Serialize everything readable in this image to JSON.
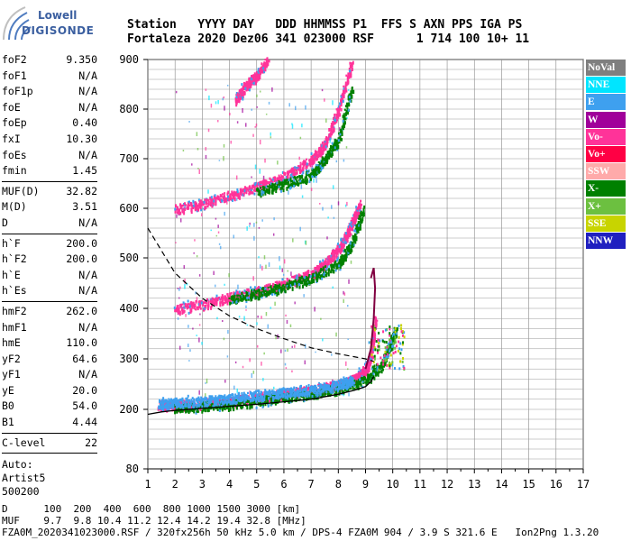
{
  "logo": {
    "line1": "Lowell",
    "line2": "DIGISONDE"
  },
  "header": {
    "line1": "Station   YYYY DAY   DDD HHMMSS P1  FFS S AXN PPS IGA PS",
    "line2": "Fortaleza 2020 Dez06 341 023000 RSF      1 714 100 10+ 11"
  },
  "params": {
    "group1": [
      {
        "k": "foF2",
        "v": "9.350"
      },
      {
        "k": "foF1",
        "v": "N/A"
      },
      {
        "k": "foF1p",
        "v": "N/A"
      },
      {
        "k": "foE",
        "v": "N/A"
      },
      {
        "k": "foEp",
        "v": "0.40"
      },
      {
        "k": "fxI",
        "v": "10.30"
      },
      {
        "k": "foEs",
        "v": "N/A"
      },
      {
        "k": "fmin",
        "v": "1.45"
      }
    ],
    "group2": [
      {
        "k": "MUF(D)",
        "v": "32.82"
      },
      {
        "k": "M(D)",
        "v": "3.51"
      },
      {
        "k": "D",
        "v": "N/A"
      }
    ],
    "group3": [
      {
        "k": "h`F",
        "v": "200.0"
      },
      {
        "k": "h`F2",
        "v": "200.0"
      },
      {
        "k": "h`E",
        "v": "N/A"
      },
      {
        "k": "h`Es",
        "v": "N/A"
      }
    ],
    "group4": [
      {
        "k": "hmF2",
        "v": "262.0"
      },
      {
        "k": "hmF1",
        "v": "N/A"
      },
      {
        "k": "hmE",
        "v": "110.0"
      },
      {
        "k": "yF2",
        "v": "64.6"
      },
      {
        "k": "yF1",
        "v": "N/A"
      },
      {
        "k": "yE",
        "v": "20.0"
      },
      {
        "k": "B0",
        "v": "54.0"
      },
      {
        "k": "B1",
        "v": "4.44"
      }
    ],
    "group5": [
      {
        "k": "C-level",
        "v": "22"
      }
    ],
    "auto": [
      "Auto:",
      "Artist5",
      "500200"
    ]
  },
  "legend": [
    {
      "label": "NoVal",
      "color": "#7f7f7f"
    },
    {
      "label": "NNE",
      "color": "#00e5ff"
    },
    {
      "label": "E",
      "color": "#3ea0ef"
    },
    {
      "label": "W",
      "color": "#a0009a"
    },
    {
      "label": "Vo-",
      "color": "#ff3399"
    },
    {
      "label": "Vo+",
      "color": "#ff0044"
    },
    {
      "label": "SSW",
      "color": "#ffaaaa"
    },
    {
      "label": "X-",
      "color": "#008000"
    },
    {
      "label": "X+",
      "color": "#6cc040"
    },
    {
      "label": "SSE",
      "color": "#c8d400"
    },
    {
      "label": "NNW",
      "color": "#2020c0"
    }
  ],
  "footer": {
    "line1": "D      100  200  400  600  800 1000 1500 3000 [km]",
    "line2": "MUF    9.7  9.8 10.4 11.2 12.4 14.2 19.4 32.8 [MHz]",
    "line3": "FZA0M_2020341023000.RSF / 320fx256h 50 kHz 5.0 km / DPS-4 FZA0M 904 / 3.9 S 321.6 E   Ion2Png 1.3.20"
  },
  "chart_data": {
    "type": "scatter",
    "x_ticks": [
      "1",
      "2",
      "3",
      "4",
      "5",
      "6",
      "7",
      "8",
      "9",
      "10",
      "11",
      "12",
      "13",
      "14",
      "15",
      "16",
      "17"
    ],
    "y_ticks": [
      "80",
      "200",
      "300",
      "400",
      "500",
      "600",
      "700",
      "800",
      "900"
    ],
    "xlim": [
      1,
      17
    ],
    "ylim": [
      80,
      900
    ],
    "grid": true,
    "traces": [
      {
        "name": "O-trace 1st hop",
        "color": "#ff3399",
        "x": [
          1.4,
          2.0,
          3.0,
          4.0,
          5.0,
          6.0,
          7.0,
          8.0,
          8.6,
          9.0,
          9.2,
          9.35
        ],
        "y": [
          210,
          210,
          213,
          218,
          225,
          232,
          240,
          250,
          262,
          280,
          310,
          380
        ]
      },
      {
        "name": "X-trace 1st hop",
        "color": "#008000",
        "x": [
          2.0,
          3.0,
          4.0,
          5.0,
          6.0,
          7.0,
          8.0,
          9.0,
          9.6,
          9.9,
          10.1
        ],
        "y": [
          205,
          207,
          212,
          218,
          225,
          232,
          242,
          260,
          290,
          330,
          360
        ]
      },
      {
        "name": "E-trace",
        "color": "#3ea0ef",
        "x": [
          1.4,
          2.0,
          3.0,
          4.0,
          5.0,
          6.0,
          7.0,
          8.0,
          8.5
        ],
        "y": [
          212,
          215,
          218,
          223,
          230,
          235,
          240,
          250,
          258
        ]
      },
      {
        "name": "O-trace 2nd hop",
        "color": "#ff3399",
        "x": [
          2.0,
          3.0,
          4.0,
          5.0,
          6.0,
          7.0,
          7.5,
          8.0,
          8.4,
          8.8
        ],
        "y": [
          400,
          410,
          423,
          435,
          450,
          470,
          490,
          520,
          560,
          610
        ]
      },
      {
        "name": "X-trace 2nd hop",
        "color": "#008000",
        "x": [
          4.0,
          5.0,
          6.0,
          7.0,
          8.0,
          8.5,
          8.9
        ],
        "y": [
          420,
          432,
          445,
          462,
          490,
          530,
          600
        ]
      },
      {
        "name": "O-trace 3rd hop",
        "color": "#ff3399",
        "x": [
          2.0,
          3.0,
          4.0,
          5.0,
          6.0,
          7.0,
          7.5,
          8.0,
          8.5
        ],
        "y": [
          600,
          610,
          628,
          645,
          665,
          700,
          730,
          800,
          900
        ]
      },
      {
        "name": "X-trace 3rd hop",
        "color": "#008000",
        "x": [
          5.0,
          6.0,
          7.0,
          7.5,
          8.0,
          8.5
        ],
        "y": [
          635,
          650,
          670,
          700,
          740,
          850
        ]
      },
      {
        "name": "4th hop",
        "color": "#ff3399",
        "x": [
          4.2,
          4.6,
          5.0,
          5.4
        ],
        "y": [
          820,
          850,
          870,
          900
        ]
      }
    ],
    "profile_lower": {
      "x": [
        1.0,
        1.5,
        2.0,
        3.0,
        4.0,
        5.0,
        6.0,
        7.0,
        8.0,
        8.6,
        9.0,
        9.2,
        9.3
      ],
      "y": [
        190,
        195,
        198,
        202,
        206,
        210,
        215,
        220,
        230,
        238,
        245,
        255,
        265
      ]
    },
    "profile_upper": {
      "x": [
        1.0,
        2.0,
        3.0,
        4.0,
        5.0,
        6.0,
        7.0,
        8.0,
        9.0,
        9.3
      ],
      "y": [
        560,
        470,
        420,
        385,
        360,
        340,
        322,
        310,
        300,
        295
      ]
    },
    "muf_curve": {
      "x": [
        9.0,
        9.2,
        9.3,
        9.35,
        9.3,
        9.2
      ],
      "y": [
        280,
        320,
        380,
        440,
        480,
        460
      ]
    }
  }
}
